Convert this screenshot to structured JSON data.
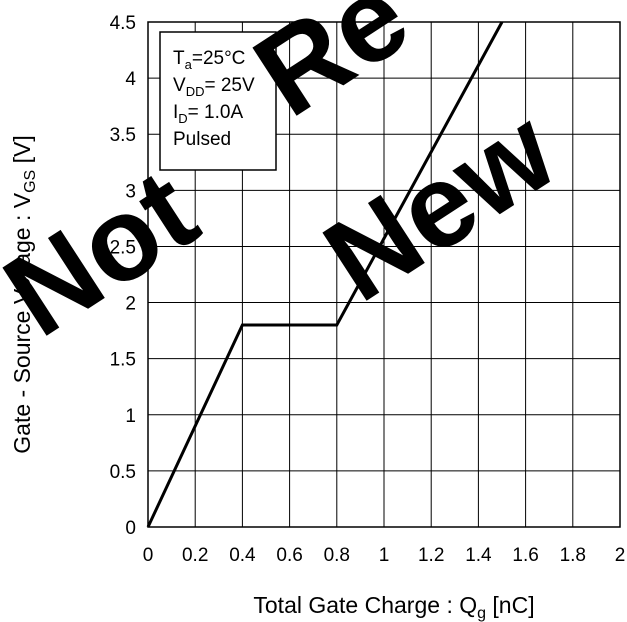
{
  "chart_data": {
    "type": "line",
    "xlabel": {
      "main": "Total Gate Charge : Q",
      "sub": "g",
      "unit": " [nC]"
    },
    "ylabel": {
      "main": "Gate - Source Voltage : V",
      "sub": "GS",
      "unit": " [V]"
    },
    "xlim": [
      0,
      2
    ],
    "ylim": [
      0,
      4.5
    ],
    "x_ticks": [
      0,
      0.2,
      0.4,
      0.6,
      0.8,
      1,
      1.2,
      1.4,
      1.6,
      1.8,
      2
    ],
    "x_tick_labels": [
      "0",
      "0.2",
      "0.4",
      "0.6",
      "0.8",
      "1",
      "1.2",
      "1.4",
      "1.6",
      "1.8",
      "2"
    ],
    "y_ticks": [
      0,
      0.5,
      1,
      1.5,
      2,
      2.5,
      3,
      3.5,
      4,
      4.5
    ],
    "y_tick_labels": [
      "0",
      "0.5",
      "1",
      "1.5",
      "2",
      "2.5",
      "3",
      "3.5",
      "4",
      "4.5"
    ],
    "grid": true,
    "series": [
      {
        "x": [
          0,
          0.4,
          0.8,
          1.5
        ],
        "y": [
          0,
          1.8,
          1.8,
          4.5
        ]
      }
    ],
    "annotation_box": {
      "lines": [
        {
          "main": "T",
          "sub": "a",
          "rest": "=25°C"
        },
        {
          "main": "V",
          "sub": "DD",
          "rest": "= 25V"
        },
        {
          "main": "I",
          "sub": "D",
          "rest": "= 1.0A"
        },
        {
          "main": "Pulsed",
          "sub": "",
          "rest": ""
        }
      ]
    },
    "watermark": "Not Recommended for New Designs"
  }
}
